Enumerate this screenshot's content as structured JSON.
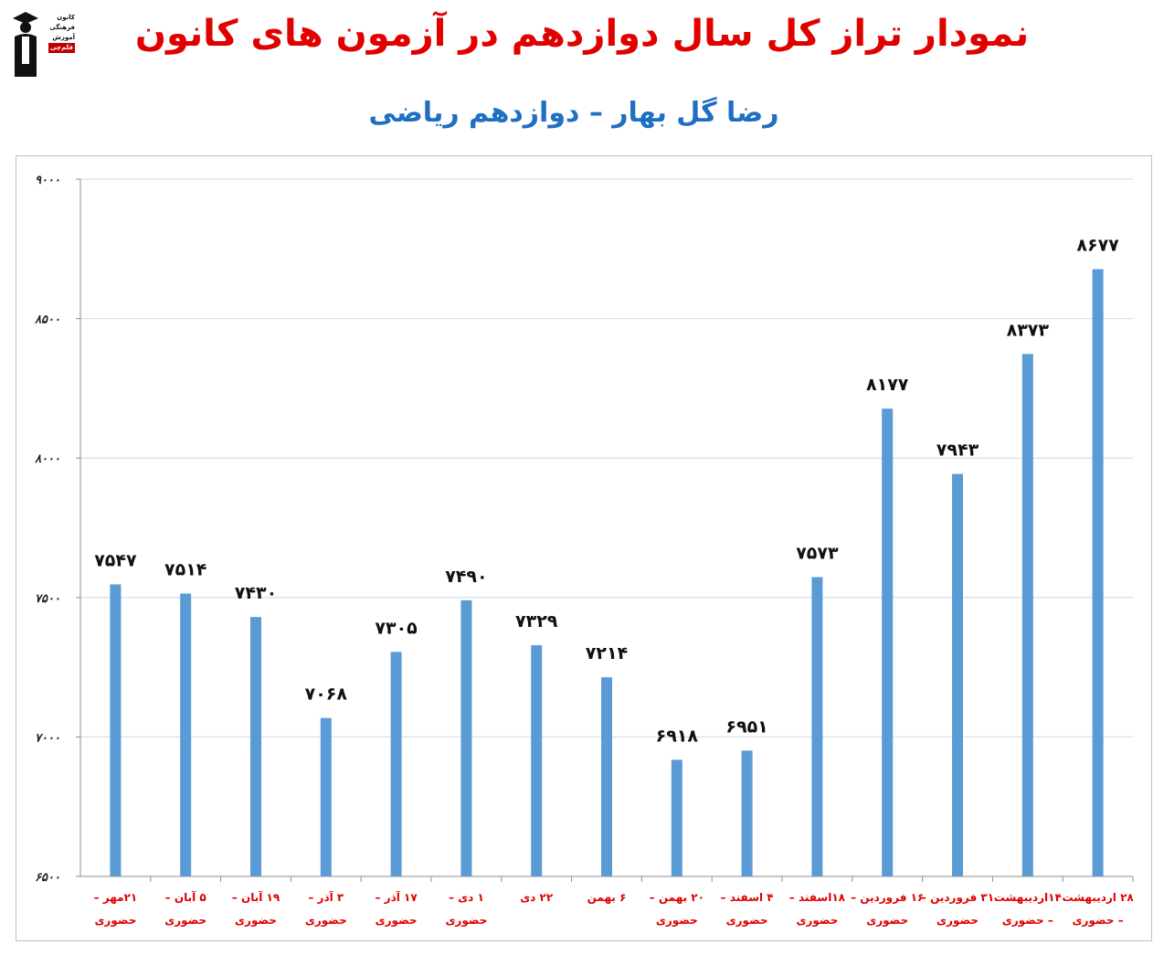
{
  "header": {
    "title": "نمودار تراز کل سال دوازدهم در آزمون های کانون",
    "subtitle": "رضا گل بهار – دوازدهم ریاضی"
  },
  "logo": {
    "lines": [
      "کانون",
      "فرهنگی",
      "آموزش"
    ],
    "badge": "قلم‌چی"
  },
  "colors": {
    "title": "#e00000",
    "subtitle": "#1f6fc2",
    "bar": "#5b9bd5",
    "grid": "#c9d9ea",
    "xlabel": "#e00000"
  },
  "chart_data": {
    "type": "bar",
    "ylim": [
      6500,
      9000
    ],
    "yticks": [
      6500,
      7000,
      7500,
      8000,
      8500,
      9000
    ],
    "ytick_labels": [
      "۶۵۰۰",
      "۷۰۰۰",
      "۷۵۰۰",
      "۸۰۰۰",
      "۸۵۰۰",
      "۹۰۰۰"
    ],
    "grid": true,
    "categories": [
      [
        "۲۱مهر –",
        "حضوری"
      ],
      [
        "۵ آبان –",
        "حضوری"
      ],
      [
        "۱۹ آبان –",
        "حضوری"
      ],
      [
        "۳ آذر –",
        "حضوری"
      ],
      [
        "۱۷ آذر –",
        "حضوری"
      ],
      [
        "۱ دی –",
        "حضوری"
      ],
      [
        "۲۲ دی",
        ""
      ],
      [
        "۶ بهمن",
        ""
      ],
      [
        "۲۰ بهمن –",
        "حضوری"
      ],
      [
        "۴ اسفند –",
        "حضوری"
      ],
      [
        "۱۸اسفند –",
        "حضوری"
      ],
      [
        "۱۶ فروردین –",
        "حضوری"
      ],
      [
        "۳۱ فروردین –",
        "حضوری"
      ],
      [
        "۱۴اردیبهشت",
        "– حضوری"
      ],
      [
        "۲۸ اردیبهشت",
        "– حضوری"
      ]
    ],
    "values": [
      7547,
      7514,
      7430,
      7068,
      7305,
      7490,
      7329,
      7214,
      6918,
      6951,
      7573,
      8177,
      7943,
      8373,
      8677
    ],
    "value_labels": [
      "۷۵۴۷",
      "۷۵۱۴",
      "۷۴۳۰",
      "۷۰۶۸",
      "۷۳۰۵",
      "۷۴۹۰",
      "۷۳۲۹",
      "۷۲۱۴",
      "۶۹۱۸",
      "۶۹۵۱",
      "۷۵۷۳",
      "۸۱۷۷",
      "۷۹۴۳",
      "۸۳۷۳",
      "۸۶۷۷"
    ]
  }
}
